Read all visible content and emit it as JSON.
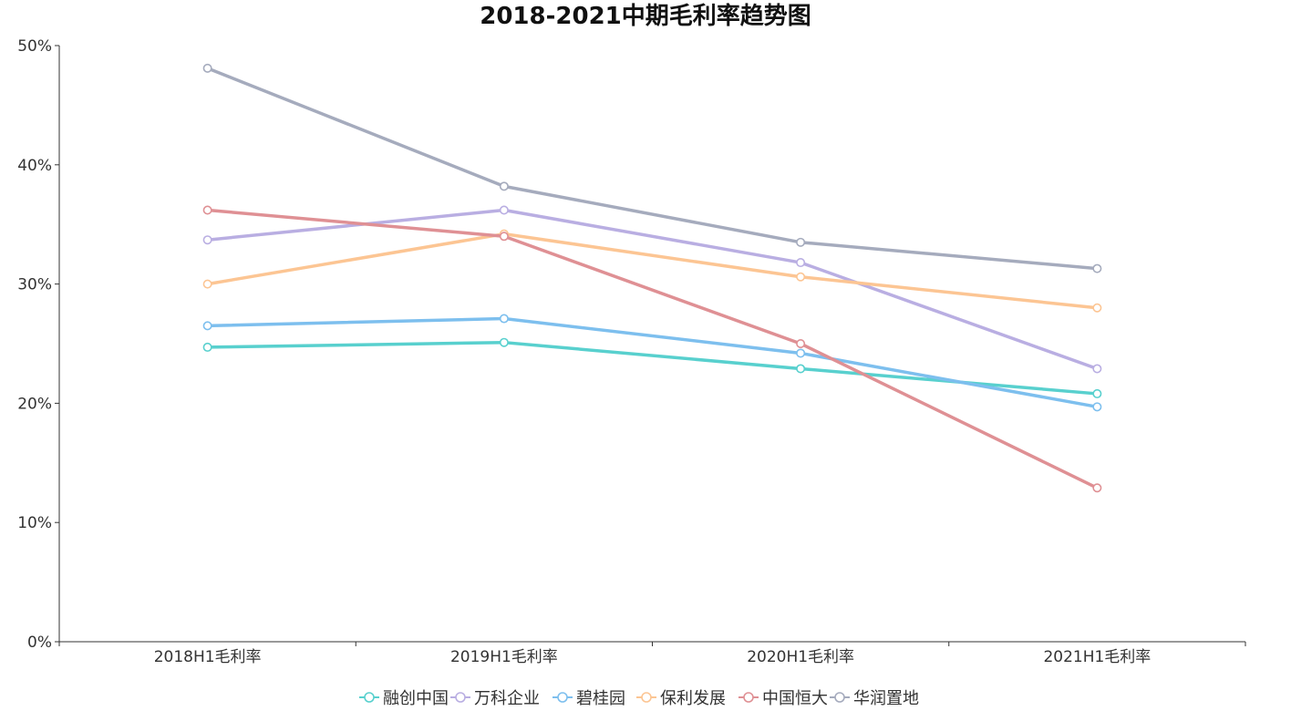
{
  "chart_data": {
    "type": "line",
    "title": "2018-2021中期毛利率趋势图",
    "xlabel": "",
    "ylabel": "",
    "categories": [
      "2018H1毛利率",
      "2019H1毛利率",
      "2020H1毛利率",
      "2021H1毛利率"
    ],
    "y_ticks": [
      "0%",
      "10%",
      "20%",
      "30%",
      "40%",
      "50%"
    ],
    "ylim": [
      0,
      50
    ],
    "grid": false,
    "legend_position": "bottom",
    "series": [
      {
        "name": "融创中国",
        "color": "#58d0ce",
        "values": [
          24.7,
          25.1,
          22.9,
          20.8
        ]
      },
      {
        "name": "万科企业",
        "color": "#b9aee2",
        "values": [
          33.7,
          36.2,
          31.8,
          22.9
        ]
      },
      {
        "name": "碧桂园",
        "color": "#7dbfee",
        "values": [
          26.5,
          27.1,
          24.2,
          19.7
        ]
      },
      {
        "name": "保利发展",
        "color": "#fcc593",
        "values": [
          30.0,
          34.2,
          30.6,
          28.0
        ]
      },
      {
        "name": "中国恒大",
        "color": "#df9094",
        "values": [
          36.2,
          34.0,
          25.0,
          12.9
        ]
      },
      {
        "name": "华润置地",
        "color": "#a5abbd",
        "values": [
          48.1,
          38.2,
          33.5,
          31.3
        ]
      }
    ]
  }
}
